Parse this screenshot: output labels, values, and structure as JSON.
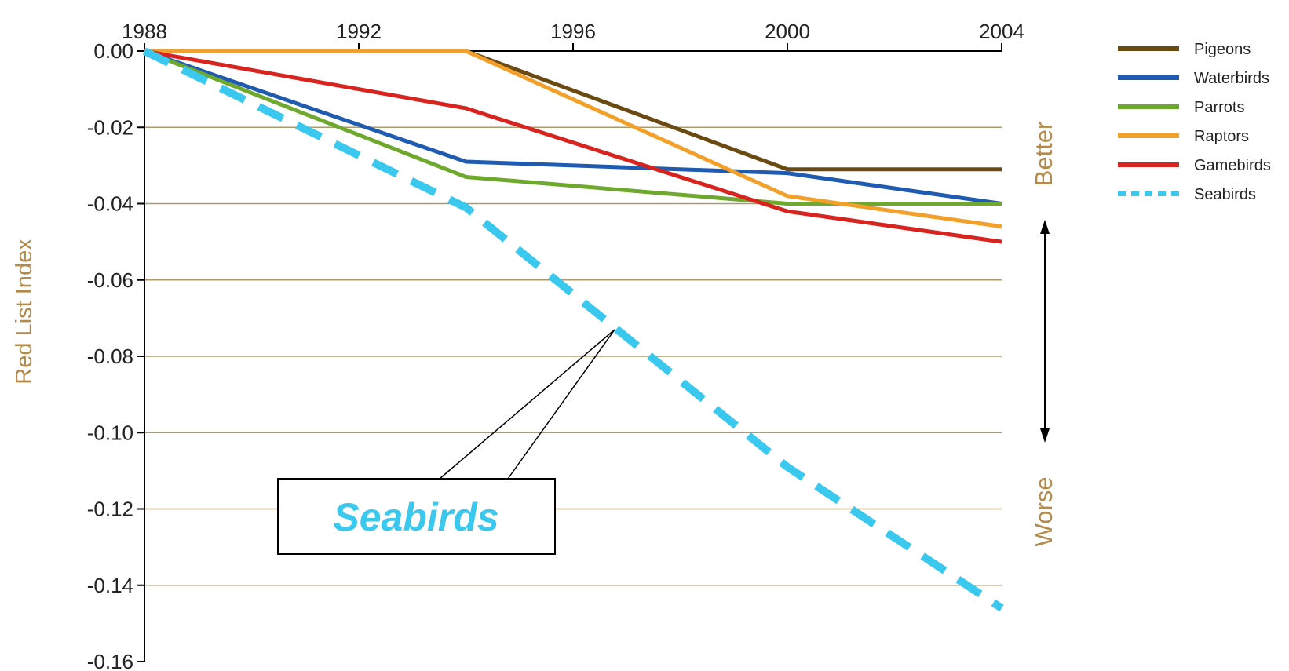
{
  "chart_data": {
    "type": "line",
    "title": "",
    "xlabel": "",
    "ylabel": "Red List Index",
    "x": [
      1988,
      1994,
      2000,
      2004
    ],
    "xlim": [
      1988,
      2004
    ],
    "ylim": [
      -0.16,
      0.0
    ],
    "x_ticks": [
      "1988",
      "1992",
      "1996",
      "2000",
      "2004"
    ],
    "y_ticks": [
      "0.00",
      "-0.02",
      "-0.04",
      "-0.06",
      "-0.08",
      "-0.10",
      "-0.12",
      "-0.14",
      "-0.16"
    ],
    "x_axis_position": "top",
    "grid": "horizontal",
    "legend_position": "right",
    "series": [
      {
        "name": "Pigeons",
        "color": "#6b4a12",
        "style": "solid",
        "values": [
          0.0,
          0.0,
          -0.031,
          -0.031
        ]
      },
      {
        "name": "Waterbirds",
        "color": "#1f5bb0",
        "style": "solid",
        "values": [
          0.0,
          -0.029,
          -0.032,
          -0.04
        ]
      },
      {
        "name": "Parrots",
        "color": "#6ea92e",
        "style": "solid",
        "values": [
          0.0,
          -0.033,
          -0.04,
          -0.04
        ]
      },
      {
        "name": "Raptors",
        "color": "#f2a02a",
        "style": "solid",
        "values": [
          0.0,
          0.0,
          -0.038,
          -0.046
        ]
      },
      {
        "name": "Gamebirds",
        "color": "#d8231f",
        "style": "solid",
        "values": [
          0.0,
          -0.015,
          -0.042,
          -0.05
        ]
      },
      {
        "name": "Seabirds",
        "color": "#3ac8ee",
        "style": "dashed",
        "values": [
          0.0,
          -0.041,
          -0.109,
          -0.146
        ]
      }
    ],
    "annotations": {
      "better": "Better",
      "worse": "Worse",
      "callout": "Seabirds"
    },
    "colors": {
      "axis": "#000000",
      "grid": "#b09a6a",
      "label": "#b48a4a",
      "callout_text": "#3ac8ee"
    }
  }
}
